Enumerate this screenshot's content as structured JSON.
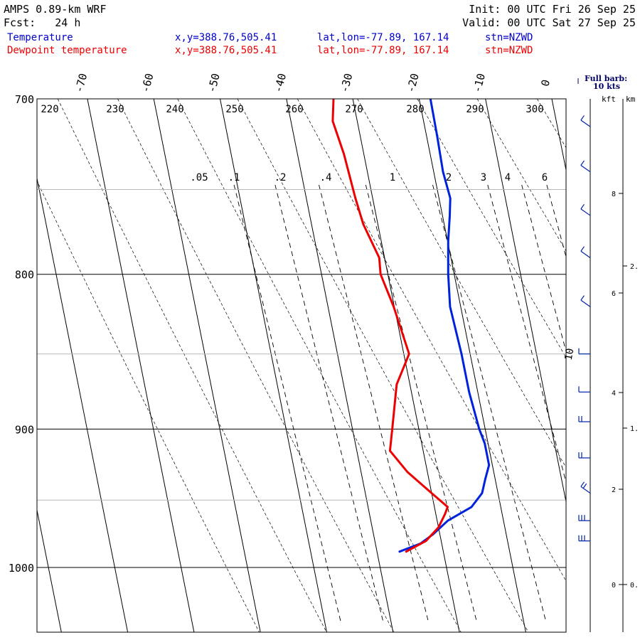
{
  "header": {
    "model": "AMPS 0.89-km WRF",
    "init_line": "Init: 00 UTC Fri 26 Sep 25",
    "fcst_line": "Fcst:   24 h",
    "valid_line": "Valid: 00 UTC Sat 27 Sep 25",
    "temp_label": "Temperature",
    "dew_label": "Dewpoint temperature",
    "xy_text": "x,y=388.76,505.41",
    "latlon_text": "lat,lon=-77.89, 167.14",
    "stn_text": "stn=NZWD",
    "barb_key_line1": "Full barb:",
    "barb_key_line2": "10 kts",
    "kft_label": "kft",
    "km_label": "km"
  },
  "colors": {
    "temperature": "#0022dd",
    "dewpoint": "#ee0000",
    "header_blue": "#0000cc",
    "header_red": "#ee0000",
    "isobar": "#000000",
    "gray_isobar": "#b0b0b0"
  },
  "chart_data": {
    "type": "line",
    "title": "AMPS 0.89-km WRF",
    "xlabel": "",
    "ylabel": "",
    "pressure_range": [
      1040,
      700
    ],
    "isobar_labels": [
      "700",
      "800",
      "900",
      "1000"
    ],
    "isotherm_labels": [
      "-70",
      "-60",
      "-50",
      "-40",
      "-30",
      "-20",
      "-10",
      "0"
    ],
    "isotherm_values": [
      -70,
      -60,
      -50,
      -40,
      -30,
      -20,
      -10,
      0
    ],
    "theta_labels": [
      "220",
      "230",
      "240",
      "250",
      "260",
      "270",
      "280",
      "290",
      "300"
    ],
    "mixing_ratio_labels": [
      ".05",
      ".1",
      ".2",
      ".4",
      "1",
      "2",
      "3",
      "4",
      "6"
    ],
    "theta_e_label": "10",
    "height_kft_labels": [
      "8",
      "6",
      "4",
      "2",
      "0"
    ],
    "height_km_labels": [
      "2.",
      "1.",
      "0."
    ],
    "series": [
      {
        "name": "Temperature",
        "color": "#0022dd",
        "p": [
          700,
          720,
          740,
          755,
          765,
          780,
          800,
          820,
          850,
          875,
          900,
          910,
          925,
          935,
          945,
          955,
          965,
          975,
          982,
          988
        ],
        "t": [
          -18.3,
          -18.4,
          -18.6,
          -18.3,
          -18.9,
          -19.9,
          -20.9,
          -21.6,
          -21.3,
          -21.3,
          -20.9,
          -20.5,
          -20.5,
          -21.5,
          -22.4,
          -24.4,
          -28.4,
          -31.0,
          -33.2,
          -36.6
        ]
      },
      {
        "name": "Dewpoint temperature",
        "color": "#ee0000",
        "p": [
          700,
          712,
          730,
          755,
          770,
          790,
          800,
          820,
          850,
          870,
          900,
          915,
          930,
          945,
          955,
          960,
          970,
          980,
          988
        ],
        "dp": [
          -32.9,
          -33.7,
          -33.0,
          -32.6,
          -32.2,
          -30.8,
          -31.1,
          -30.1,
          -29.2,
          -32.0,
          -34.0,
          -35.0,
          -33.0,
          -30.0,
          -28.0,
          -28.6,
          -30.0,
          -32.3,
          -35.6
        ]
      }
    ],
    "wind_barbs": [
      {
        "p": 715,
        "dir": "NW",
        "speed_kt": 10
      },
      {
        "p": 740,
        "dir": "NW",
        "speed_kt": 10
      },
      {
        "p": 765,
        "dir": "NW",
        "speed_kt": 10
      },
      {
        "p": 790,
        "dir": "NW",
        "speed_kt": 10
      },
      {
        "p": 820,
        "dir": "NW",
        "speed_kt": 10
      },
      {
        "p": 850,
        "dir": "W",
        "speed_kt": 10
      },
      {
        "p": 875,
        "dir": "W",
        "speed_kt": 10
      },
      {
        "p": 895,
        "dir": "W",
        "speed_kt": 20
      },
      {
        "p": 920,
        "dir": "W",
        "speed_kt": 20
      },
      {
        "p": 945,
        "dir": "NW",
        "speed_kt": 20
      },
      {
        "p": 965,
        "dir": "W",
        "speed_kt": 30
      },
      {
        "p": 980,
        "dir": "W",
        "speed_kt": 30
      }
    ]
  }
}
